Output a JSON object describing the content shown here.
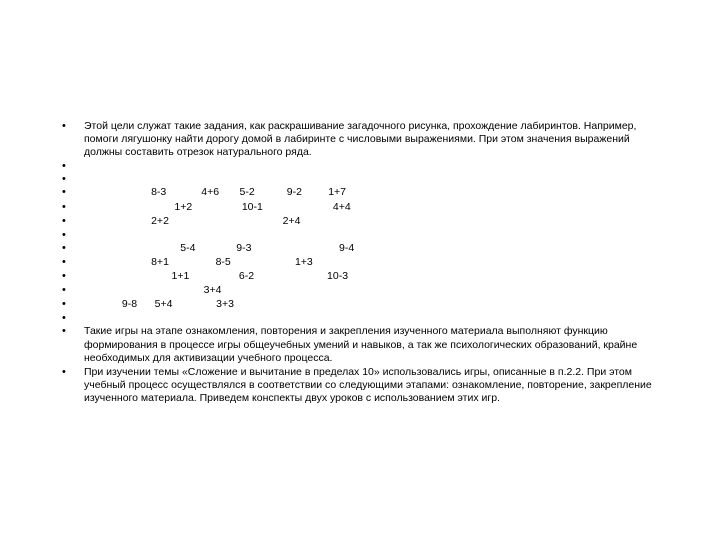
{
  "text_color": "#000000",
  "background_color": "#ffffff",
  "font_family": "Arial",
  "font_size_pt": 8,
  "items": {
    "p1": "Этой цели служат такие задания, как раскрашивание загадочного рисунка, прохождение лабиринтов. Например, помоги лягушонку найти дорогу домой в лабиринте с числовыми выражениями. При этом значения выражений должны составить отрезок натурального ряда.",
    "e2": " ",
    "e3": " ",
    "m1": "                       8-3            4+6       5-2           9-2         1+7",
    "m2": "                               1+2                 10-1                        4+4",
    "m3": "                       2+2                                       2+4",
    "e4": " ",
    "m4": "                                 5-4              9-3                              9-4",
    "m5": "                       8+1                8-5                      1+3",
    "m6": "                              1+1                 6-2                         10-3",
    "m7": "                                         3+4",
    "m8": "             9-8      5+4               3+3",
    "e5": " ",
    "p2": "Такие игры на этапе ознакомления, повторения и закрепления изученного материала выполняют функцию формирования в процессе игры общеучебных умений и навыков, а так же  психологических образований, крайне необходимых для активизации учебного процесса.",
    "p3": "При изучении темы «Сложение и вычитание в пределах 10» использовались игры, описанные в п.2.2. При этом учебный процесс осуществлялся в соответствии со следующими этапами: ознакомление, повторение, закрепление изученного материала. Приведем конспекты двух уроков с использованием этих игр."
  }
}
